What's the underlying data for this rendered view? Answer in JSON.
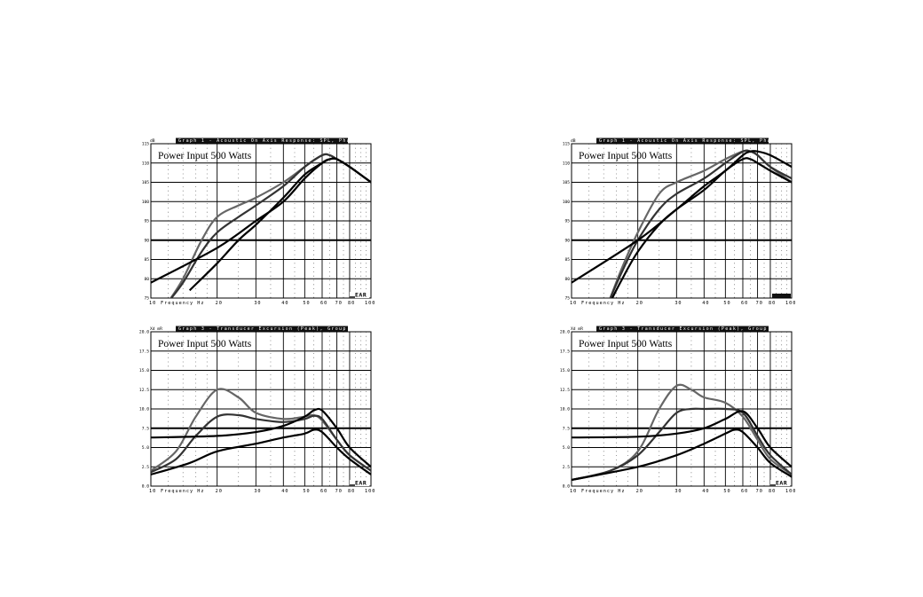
{
  "chart_data": [
    {
      "type": "line",
      "title": "Graph 1 - Acoustic On Axis Response: SPL, Phase",
      "unit_label": "dB",
      "annotation": "Power Input 500 Watts",
      "xlabel": "Frequency Hz",
      "x_scale": "log",
      "xlim": [
        10,
        100
      ],
      "ylim": [
        75,
        115
      ],
      "y_ticks": [
        "75",
        "80",
        "85",
        "90",
        "95",
        "100",
        "105",
        "110",
        "115"
      ],
      "x_ticks": [
        "10",
        "20",
        "30",
        "40",
        "50",
        "60",
        "70",
        "80",
        "100"
      ],
      "logo": "EAR",
      "series": [
        {
          "color": "#666666",
          "x": [
            12,
            14,
            17,
            20,
            25,
            30,
            40,
            50,
            60,
            65,
            70,
            80,
            100
          ],
          "y": [
            74,
            80,
            90,
            96,
            99,
            101,
            105,
            109,
            112,
            112,
            111,
            109,
            105
          ]
        },
        {
          "color": "#333333",
          "x": [
            12,
            14,
            17,
            20,
            25,
            30,
            40,
            50,
            60,
            65,
            70,
            80,
            100
          ],
          "y": [
            74,
            79,
            87,
            92,
            96,
            99,
            104,
            109,
            112,
            112,
            111,
            109,
            105
          ]
        },
        {
          "color": "#000000",
          "x": [
            15,
            20,
            25,
            30,
            40,
            50,
            60,
            65,
            70,
            80,
            100
          ],
          "y": [
            77,
            84,
            90,
            94,
            101,
            107,
            110,
            111,
            111,
            109,
            105
          ]
        },
        {
          "color": "#000000",
          "x": [
            10,
            20,
            30,
            40,
            50,
            60,
            65,
            70,
            80,
            100
          ],
          "y": [
            79,
            88,
            95,
            100,
            106,
            110,
            111,
            111,
            109,
            105
          ]
        }
      ]
    },
    {
      "type": "line",
      "title": "Graph 1 - Acoustic On Axis Response: SPL, Phase",
      "unit_label": "dB",
      "annotation": "Power Input 500 Watts",
      "xlabel": "Frequency Hz",
      "x_scale": "log",
      "xlim": [
        10,
        100
      ],
      "ylim": [
        75,
        115
      ],
      "y_ticks": [
        "75",
        "80",
        "85",
        "90",
        "95",
        "100",
        "105",
        "110",
        "115"
      ],
      "x_ticks": [
        "10",
        "20",
        "30",
        "40",
        "50",
        "60",
        "70",
        "80",
        "100"
      ],
      "logo": "",
      "series": [
        {
          "color": "#666666",
          "x": [
            15,
            17,
            20,
            25,
            30,
            40,
            50,
            60,
            65,
            70,
            80,
            100
          ],
          "y": [
            75,
            83,
            92,
            102,
            105,
            108,
            111,
            113,
            113,
            112,
            109,
            105
          ]
        },
        {
          "color": "#333333",
          "x": [
            15,
            17,
            20,
            25,
            30,
            40,
            50,
            60,
            65,
            70,
            80,
            100
          ],
          "y": [
            75,
            82,
            90,
            98,
            102,
            106,
            110,
            113,
            113,
            112,
            109,
            106
          ]
        },
        {
          "color": "#000000",
          "x": [
            15,
            17,
            20,
            25,
            30,
            40,
            50,
            60,
            65,
            70,
            80,
            100
          ],
          "y": [
            74,
            80,
            87,
            94,
            98,
            103,
            108,
            111,
            111,
            110,
            108,
            105
          ]
        },
        {
          "color": "#000000",
          "x": [
            10,
            20,
            30,
            40,
            50,
            60,
            65,
            70,
            80,
            100
          ],
          "y": [
            79,
            90,
            98,
            104,
            108,
            112,
            113,
            113,
            112,
            109
          ]
        }
      ]
    },
    {
      "type": "line",
      "title": "Graph 3 - Transducer Excursion (Peak), Group Delay",
      "unit_label": "Xd mR",
      "annotation": "Power Input 500 Watts",
      "xlabel": "Frequency Hz",
      "x_scale": "log",
      "xlim": [
        10,
        100
      ],
      "ylim": [
        0,
        20
      ],
      "y_ticks": [
        "0.0",
        "2.5",
        "5.0",
        "7.5",
        "10.0",
        "12.5",
        "15.0",
        "17.5",
        "20.0"
      ],
      "x_ticks": [
        "10",
        "20",
        "30",
        "40",
        "50",
        "60",
        "70",
        "80",
        "100"
      ],
      "logo": "EAR",
      "series": [
        {
          "color": "#666666",
          "x": [
            10,
            13,
            16,
            20,
            25,
            30,
            40,
            50,
            55,
            60,
            70,
            80,
            100
          ],
          "y": [
            2,
            4.5,
            9,
            12.5,
            11.5,
            9.5,
            8.7,
            9,
            9.2,
            8.5,
            6,
            4,
            2
          ]
        },
        {
          "color": "#333333",
          "x": [
            10,
            13,
            16,
            20,
            25,
            30,
            40,
            50,
            55,
            60,
            70,
            80,
            100
          ],
          "y": [
            1.8,
            3.5,
            6.5,
            9,
            9.2,
            8.7,
            8.3,
            8.7,
            9.1,
            8.7,
            6,
            4,
            2
          ]
        },
        {
          "color": "#000000",
          "x": [
            10,
            20,
            30,
            40,
            50,
            55,
            60,
            70,
            80,
            100
          ],
          "y": [
            6.3,
            6.5,
            7,
            7.8,
            9,
            9.8,
            9.8,
            7.5,
            5,
            2.5
          ]
        },
        {
          "color": "#000000",
          "x": [
            10,
            15,
            20,
            30,
            40,
            50,
            55,
            60,
            70,
            80,
            100
          ],
          "y": [
            1.5,
            3,
            4.5,
            5.5,
            6.3,
            6.8,
            7.3,
            7,
            5,
            3.5,
            1.5
          ]
        }
      ]
    },
    {
      "type": "line",
      "title": "Graph 3 - Transducer Excursion (Peak), Group Delay",
      "unit_label": "Xd mR",
      "annotation": "Power Input 500 Watts",
      "xlabel": "Frequency Hz",
      "x_scale": "log",
      "xlim": [
        10,
        100
      ],
      "ylim": [
        0,
        20
      ],
      "y_ticks": [
        "0.0",
        "2.5",
        "5.0",
        "7.5",
        "10.0",
        "12.5",
        "15.0",
        "17.5",
        "20.0"
      ],
      "x_ticks": [
        "10",
        "20",
        "30",
        "40",
        "50",
        "60",
        "70",
        "80",
        "100"
      ],
      "logo": "EAR",
      "series": [
        {
          "color": "#666666",
          "x": [
            10,
            15,
            20,
            25,
            30,
            35,
            40,
            50,
            60,
            70,
            80,
            100
          ],
          "y": [
            0.8,
            2,
            4.5,
            10,
            13,
            12.5,
            11.5,
            10.8,
            9,
            6,
            3.5,
            1.5
          ]
        },
        {
          "color": "#333333",
          "x": [
            10,
            15,
            20,
            25,
            30,
            35,
            40,
            50,
            60,
            70,
            80,
            100
          ],
          "y": [
            0.8,
            2,
            4,
            7,
            9.5,
            10,
            10,
            10,
            9.5,
            6.5,
            4,
            1.5
          ]
        },
        {
          "color": "#000000",
          "x": [
            10,
            20,
            30,
            40,
            50,
            60,
            70,
            80,
            100
          ],
          "y": [
            6.3,
            6.4,
            6.8,
            7.5,
            8.7,
            9.7,
            7.5,
            5,
            2.5
          ]
        },
        {
          "color": "#000000",
          "x": [
            10,
            20,
            30,
            40,
            50,
            55,
            60,
            70,
            80,
            100
          ],
          "y": [
            0.8,
            2.5,
            4,
            5.5,
            6.8,
            7.3,
            7,
            5,
            3,
            1.2
          ]
        }
      ]
    }
  ]
}
